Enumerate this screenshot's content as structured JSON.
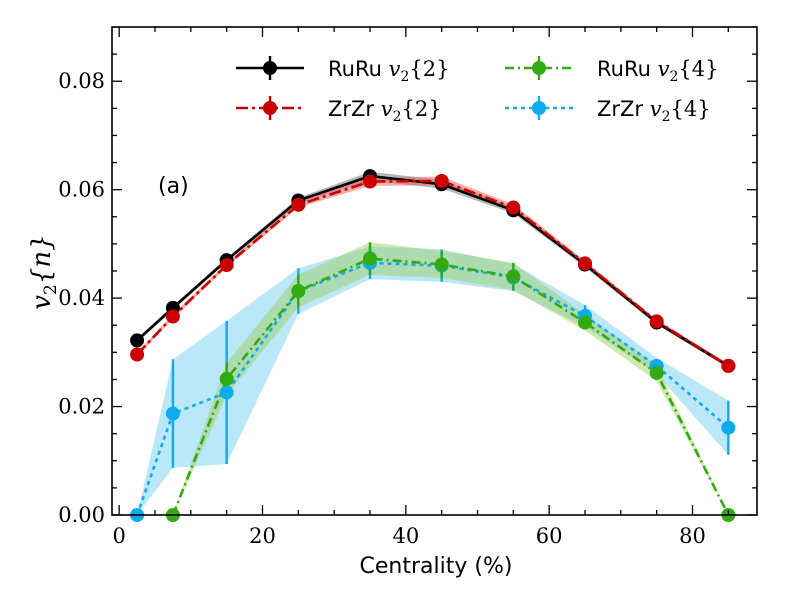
{
  "chart_data": {
    "type": "line",
    "xlabel": "Centrality (%)",
    "ylabel_main": "v",
    "ylabel_sub": "2",
    "ylabel_rest": "{n}",
    "xlim": [
      -1,
      89
    ],
    "ylim": [
      0,
      0.09
    ],
    "xticks": [
      0,
      20,
      40,
      60,
      80
    ],
    "xtick_labels": [
      "0",
      "20",
      "40",
      "60",
      "80"
    ],
    "yticks": [
      0,
      0.02,
      0.04,
      0.06,
      0.08
    ],
    "ytick_labels": [
      "0.00",
      "0.02",
      "0.04",
      "0.06",
      "0.08"
    ],
    "annotation": "(a)",
    "legend_placement": "top",
    "series": [
      {
        "name": "RuRu v2{2}",
        "label_prefix": "RuRu",
        "label_math": "v",
        "label_sub": "2",
        "label_rest": "{2}",
        "color": "#000000",
        "band_color": "#808080",
        "dash": "",
        "x": [
          2.5,
          7.5,
          15,
          25,
          35,
          45,
          55,
          65,
          75,
          85
        ],
        "y": [
          0.0322,
          0.0382,
          0.047,
          0.058,
          0.0625,
          0.061,
          0.0562,
          0.0462,
          0.0355,
          0.0275
        ],
        "err": [
          0.0004,
          0.0004,
          0.0004,
          0.0005,
          0.0008,
          0.0008,
          0.0006,
          0.0005,
          0.0004,
          0.0004
        ]
      },
      {
        "name": "ZrZr v2{2}",
        "label_prefix": "ZrZr",
        "label_math": "v",
        "label_sub": "2",
        "label_rest": "{2}",
        "color": "#cc0000",
        "band_color": "#ee6666",
        "dash": "12 4 3 4",
        "x": [
          2.5,
          7.5,
          15,
          25,
          35,
          45,
          55,
          65,
          75,
          85
        ],
        "y": [
          0.0296,
          0.0366,
          0.0461,
          0.0572,
          0.0615,
          0.0616,
          0.0567,
          0.0464,
          0.0357,
          0.0275
        ],
        "err": [
          0.0004,
          0.0004,
          0.0004,
          0.0005,
          0.0008,
          0.0008,
          0.0006,
          0.0005,
          0.0004,
          0.0004
        ]
      },
      {
        "name": "RuRu v2{4}",
        "label_prefix": "RuRu",
        "label_math": "v",
        "label_sub": "2",
        "label_rest": "{4}",
        "color": "#33aa11",
        "band_color": "#99cc55",
        "dash": "9 4 2 4",
        "x": [
          7.5,
          15,
          25,
          35,
          45,
          55,
          65,
          75,
          85
        ],
        "y": [
          0.0,
          0.0251,
          0.0413,
          0.0473,
          0.0462,
          0.044,
          0.0355,
          0.0262,
          0.0
        ],
        "err": [
          0.0,
          0.003,
          0.003,
          0.003,
          0.0025,
          0.0025,
          0.0015,
          0.0015,
          0.0
        ]
      },
      {
        "name": "ZrZr v2{4}",
        "label_prefix": "ZrZr",
        "label_math": "v",
        "label_sub": "2",
        "label_rest": "{4}",
        "color": "#11aaee",
        "band_color": "#66ccf2",
        "dash": "4 4",
        "x": [
          2.5,
          7.5,
          15,
          25,
          35,
          45,
          55,
          65,
          75,
          85
        ],
        "y": [
          0.0,
          0.0187,
          0.0226,
          0.0413,
          0.0465,
          0.046,
          0.0438,
          0.0367,
          0.0275,
          0.0161
        ],
        "err": [
          0.0,
          0.01,
          0.0132,
          0.0042,
          0.003,
          0.003,
          0.0025,
          0.002,
          0.0015,
          0.005
        ]
      }
    ]
  }
}
